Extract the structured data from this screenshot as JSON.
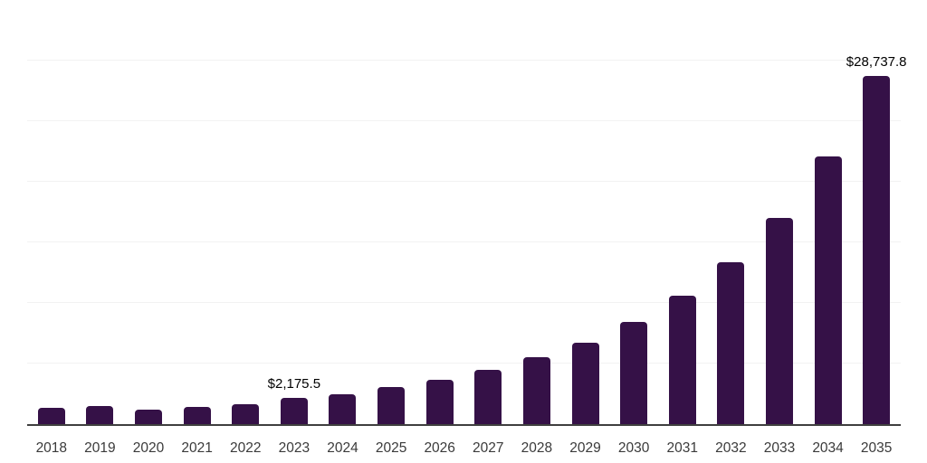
{
  "chart_data": {
    "type": "bar",
    "title": "",
    "xlabel": "",
    "ylabel": "",
    "categories": [
      "2018",
      "2019",
      "2020",
      "2021",
      "2022",
      "2023",
      "2024",
      "2025",
      "2026",
      "2027",
      "2028",
      "2029",
      "2030",
      "2031",
      "2032",
      "2033",
      "2034",
      "2035"
    ],
    "values": [
      1340,
      1530,
      1230,
      1420,
      1680,
      2175.5,
      2460,
      3060,
      3660,
      4480,
      5520,
      6720,
      8430,
      10600,
      13360,
      17020,
      22090,
      28737.8
    ],
    "data_labels": {
      "2023": "$2,175.5",
      "2035": "$28,737.8"
    },
    "ylim": [
      0,
      35000
    ],
    "gridline_interval": 5000,
    "grid": true,
    "legend": false,
    "colors": {
      "bar": "#351147",
      "gridline": "#f2f2f2",
      "axis_line": "#3f3f3f",
      "tick_label": "#3a3a3a",
      "data_label": "#000000"
    }
  }
}
